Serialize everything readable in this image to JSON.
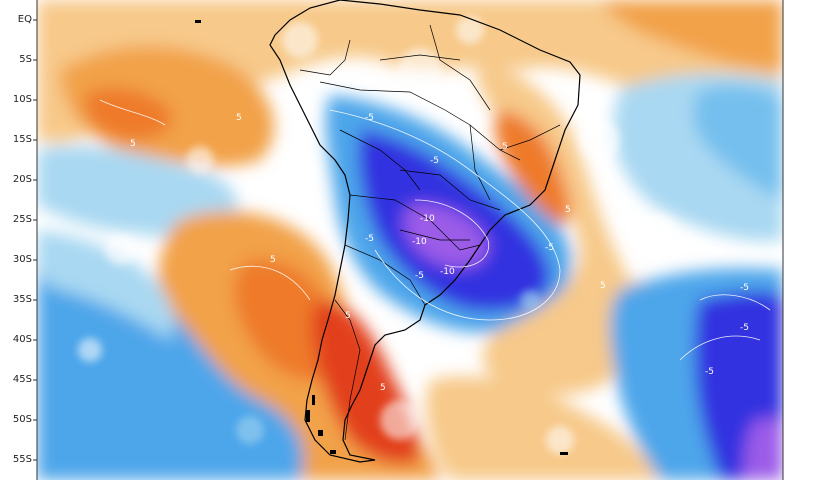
{
  "map": {
    "latitude_labels": [
      "EQ",
      "5S",
      "10S",
      "15S",
      "20S",
      "25S",
      "30S",
      "35S",
      "40S",
      "45S",
      "50S",
      "55S"
    ],
    "contour_labels": [
      "-5",
      "-5",
      "-5",
      "-5",
      "-10",
      "-10",
      "-10",
      "-5",
      "-5",
      "5",
      "5",
      "5",
      "5",
      "5",
      "5",
      "5",
      "5",
      "-5",
      "-5"
    ],
    "colors": {
      "ocean_white": "#ffffff",
      "light_orange": "#f7c98a",
      "orange": "#f2a24a",
      "dark_orange": "#ee7a2a",
      "red": "#e2401f",
      "light_blue": "#a9d8f2",
      "blue": "#4ea6ea",
      "deep_blue": "#3030e0",
      "violet": "#9b5be8",
      "coastline": "#000000"
    }
  }
}
